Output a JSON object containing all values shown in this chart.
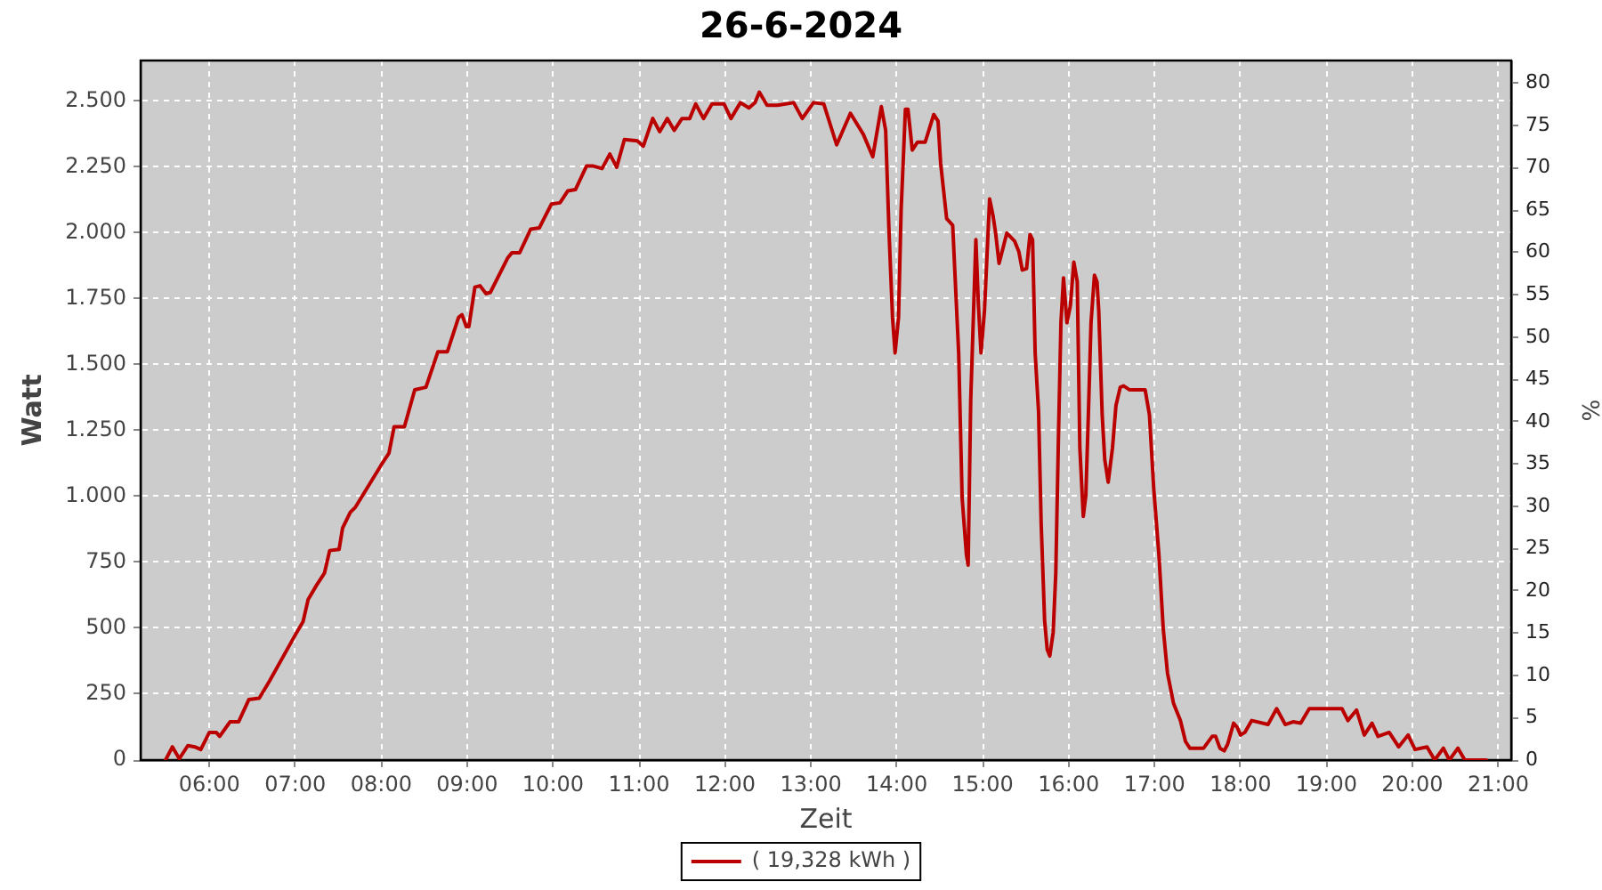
{
  "chart_data": {
    "type": "line",
    "title": "26-6-2024",
    "xlabel": "Zeit",
    "ylabel": "Watt",
    "y2label": "%",
    "x": [
      5.49,
      5.57,
      5.65,
      5.75,
      5.83,
      5.9,
      6,
      6.08,
      6.12,
      6.24,
      6.34,
      6.46,
      6.58,
      6.7,
      7,
      7.09,
      7.15,
      7.25,
      7.34,
      7.4,
      7.51,
      7.55,
      7.64,
      7.7,
      8,
      8.09,
      8.15,
      8.27,
      8.39,
      8.52,
      8.66,
      8.77,
      8.9,
      8.94,
      8.99,
      9.02,
      9.09,
      9.15,
      9.22,
      9.27,
      9.47,
      9.52,
      9.61,
      9.74,
      9.84,
      9.98,
      10.08,
      10.17,
      10.26,
      10.39,
      10.46,
      10.57,
      10.66,
      10.74,
      10.83,
      10.98,
      11.05,
      11.16,
      11.24,
      11.33,
      11.41,
      11.5,
      11.59,
      11.66,
      11.75,
      11.85,
      11.99,
      12.07,
      12.18,
      12.28,
      12.35,
      12.4,
      12.49,
      12.61,
      12.8,
      12.9,
      13.03,
      13.15,
      13.3,
      13.46,
      13.61,
      13.72,
      13.82,
      13.87,
      13.91,
      13.95,
      13.98,
      14.02,
      14.05,
      14.1,
      14.13,
      14.18,
      14.24,
      14.33,
      14.43,
      14.48,
      14.51,
      14.58,
      14.65,
      14.72,
      14.76,
      14.81,
      14.83,
      14.86,
      14.92,
      14.95,
      14.98,
      15.02,
      15.08,
      15.12,
      15.15,
      15.19,
      15.28,
      15.37,
      15.42,
      15.46,
      15.51,
      15.55,
      15.58,
      15.61,
      15.65,
      15.68,
      15.72,
      15.75,
      15.78,
      15.82,
      15.85,
      15.88,
      15.91,
      15.94,
      15.98,
      16.02,
      16.06,
      16.1,
      16.13,
      16.17,
      16.2,
      16.23,
      16.26,
      16.3,
      16.33,
      16.35,
      16.39,
      16.42,
      16.46,
      16.51,
      16.55,
      16.6,
      16.64,
      16.71,
      16.89,
      16.94,
      16.99,
      17.05,
      17.1,
      17.15,
      17.22,
      17.3,
      17.36,
      17.41,
      17.57,
      17.67,
      17.71,
      17.76,
      17.81,
      17.85,
      17.92,
      17.96,
      18,
      18.05,
      18.13,
      18.32,
      18.42,
      18.52,
      18.61,
      18.7,
      18.8,
      19.18,
      19.25,
      19.35,
      19.44,
      19.53,
      19.6,
      19.73,
      19.84,
      19.95,
      20.03,
      20.17,
      20.26,
      20.36,
      20.43,
      20.53,
      20.61,
      20.86
    ],
    "series": [
      {
        "name": "( 19,328 kWh )",
        "color": "#bb0000",
        "values": [
          0,
          50,
          5,
          55,
          50,
          40,
          105,
          105,
          90,
          145,
          145,
          230,
          235,
          300,
          475,
          525,
          610,
          665,
          710,
          795,
          800,
          880,
          940,
          960,
          1120,
          1165,
          1265,
          1265,
          1405,
          1415,
          1550,
          1550,
          1680,
          1690,
          1645,
          1645,
          1795,
          1800,
          1770,
          1775,
          1905,
          1925,
          1925,
          2015,
          2020,
          2110,
          2115,
          2160,
          2165,
          2255,
          2255,
          2245,
          2300,
          2250,
          2355,
          2350,
          2330,
          2435,
          2385,
          2435,
          2390,
          2435,
          2435,
          2490,
          2435,
          2490,
          2490,
          2435,
          2495,
          2475,
          2495,
          2535,
          2485,
          2485,
          2495,
          2435,
          2495,
          2490,
          2335,
          2455,
          2375,
          2290,
          2480,
          2390,
          2000,
          1680,
          1545,
          1680,
          2085,
          2470,
          2470,
          2315,
          2345,
          2345,
          2450,
          2425,
          2265,
          2055,
          2030,
          1545,
          995,
          780,
          740,
          1365,
          1975,
          1725,
          1545,
          1705,
          2130,
          2065,
          2000,
          1885,
          2000,
          1970,
          1930,
          1860,
          1865,
          1995,
          1975,
          1545,
          1320,
          895,
          530,
          420,
          395,
          485,
          710,
          1210,
          1660,
          1830,
          1660,
          1725,
          1890,
          1815,
          1185,
          925,
          1005,
          1320,
          1660,
          1840,
          1815,
          1705,
          1310,
          1140,
          1055,
          1185,
          1345,
          1415,
          1420,
          1405,
          1405,
          1310,
          1030,
          780,
          500,
          330,
          215,
          150,
          70,
          45,
          45,
          90,
          90,
          45,
          35,
          60,
          140,
          125,
          95,
          105,
          150,
          135,
          195,
          135,
          145,
          140,
          195,
          195,
          150,
          190,
          95,
          140,
          90,
          105,
          50,
          95,
          40,
          50,
          0,
          45,
          0,
          45,
          0,
          0
        ]
      }
    ],
    "xlim": [
      5.2,
      21.15
    ],
    "xticks": [
      {
        "value": 6,
        "label": "06:00"
      },
      {
        "value": 7,
        "label": "07:00"
      },
      {
        "value": 8,
        "label": "08:00"
      },
      {
        "value": 9,
        "label": "09:00"
      },
      {
        "value": 10,
        "label": "10:00"
      },
      {
        "value": 11,
        "label": "11:00"
      },
      {
        "value": 12,
        "label": "12:00"
      },
      {
        "value": 13,
        "label": "13:00"
      },
      {
        "value": 14,
        "label": "14:00"
      },
      {
        "value": 15,
        "label": "15:00"
      },
      {
        "value": 16,
        "label": "16:00"
      },
      {
        "value": 17,
        "label": "17:00"
      },
      {
        "value": 18,
        "label": "18:00"
      },
      {
        "value": 19,
        "label": "19:00"
      },
      {
        "value": 20,
        "label": "20:00"
      },
      {
        "value": 21,
        "label": "21:00"
      }
    ],
    "ylim": [
      0,
      2655
    ],
    "yticks": [
      0,
      250,
      500,
      750,
      {
        "value": 1000,
        "label": "1.000"
      },
      {
        "value": 1250,
        "label": "1.250"
      },
      {
        "value": 1500,
        "label": "1.500"
      },
      {
        "value": 1750,
        "label": "1.750"
      },
      {
        "value": 2000,
        "label": "2.000"
      },
      {
        "value": 2250,
        "label": "2.250"
      },
      {
        "value": 2500,
        "label": "2.500"
      }
    ],
    "y2lim": [
      0,
      82.7
    ],
    "y2ticks": [
      0,
      5,
      10,
      15,
      20,
      25,
      30,
      35,
      40,
      45,
      50,
      55,
      60,
      65,
      70,
      75,
      80
    ],
    "grid": true,
    "legend": "bottom",
    "marker": "none",
    "line_style": "solid"
  }
}
